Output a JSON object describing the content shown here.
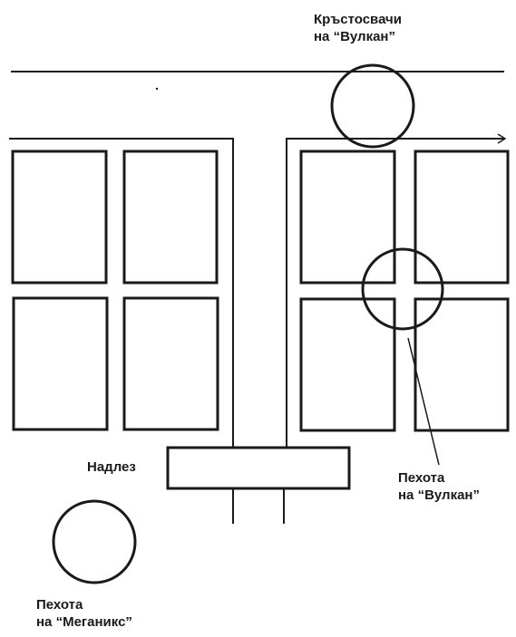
{
  "labels": {
    "crusaders_vulkan": {
      "line1": "Кръстосвачи",
      "line2": "на “Вулкан”"
    },
    "overpass": "Надлез",
    "infantry_vulkan": {
      "line1": "Пехота",
      "line2": "на “Вулкан”"
    },
    "infantry_meganiks": {
      "line1": "Пехота",
      "line2": "на “Меганикс”"
    }
  },
  "colors": {
    "ink": "#1a1a1a",
    "background": "#ffffff"
  }
}
